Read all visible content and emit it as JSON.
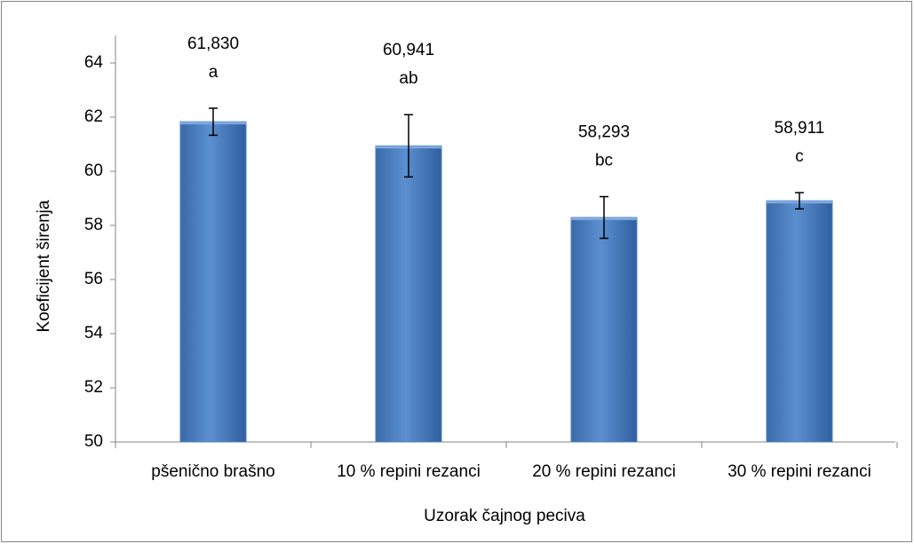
{
  "chart_data": {
    "type": "bar",
    "categories": [
      "pšenično brašno",
      "10 % repini rezanci",
      "20 % repini rezanci",
      "30 % repini rezanci"
    ],
    "values": [
      61.83,
      60.941,
      58.293,
      58.911
    ],
    "value_labels": [
      "61,830",
      "60,941",
      "58,293",
      "58,911"
    ],
    "errors": [
      0.5,
      1.15,
      0.77,
      0.3
    ],
    "letters": [
      "a",
      "ab",
      "bc",
      "c"
    ],
    "color": "#4f81bd",
    "ylim": [
      50,
      64
    ],
    "yticks": [
      50,
      52,
      54,
      56,
      58,
      60,
      62,
      64
    ],
    "ylabel": "Koeficijent širenja",
    "xlabel": "Uzorak čajnog peciva"
  }
}
